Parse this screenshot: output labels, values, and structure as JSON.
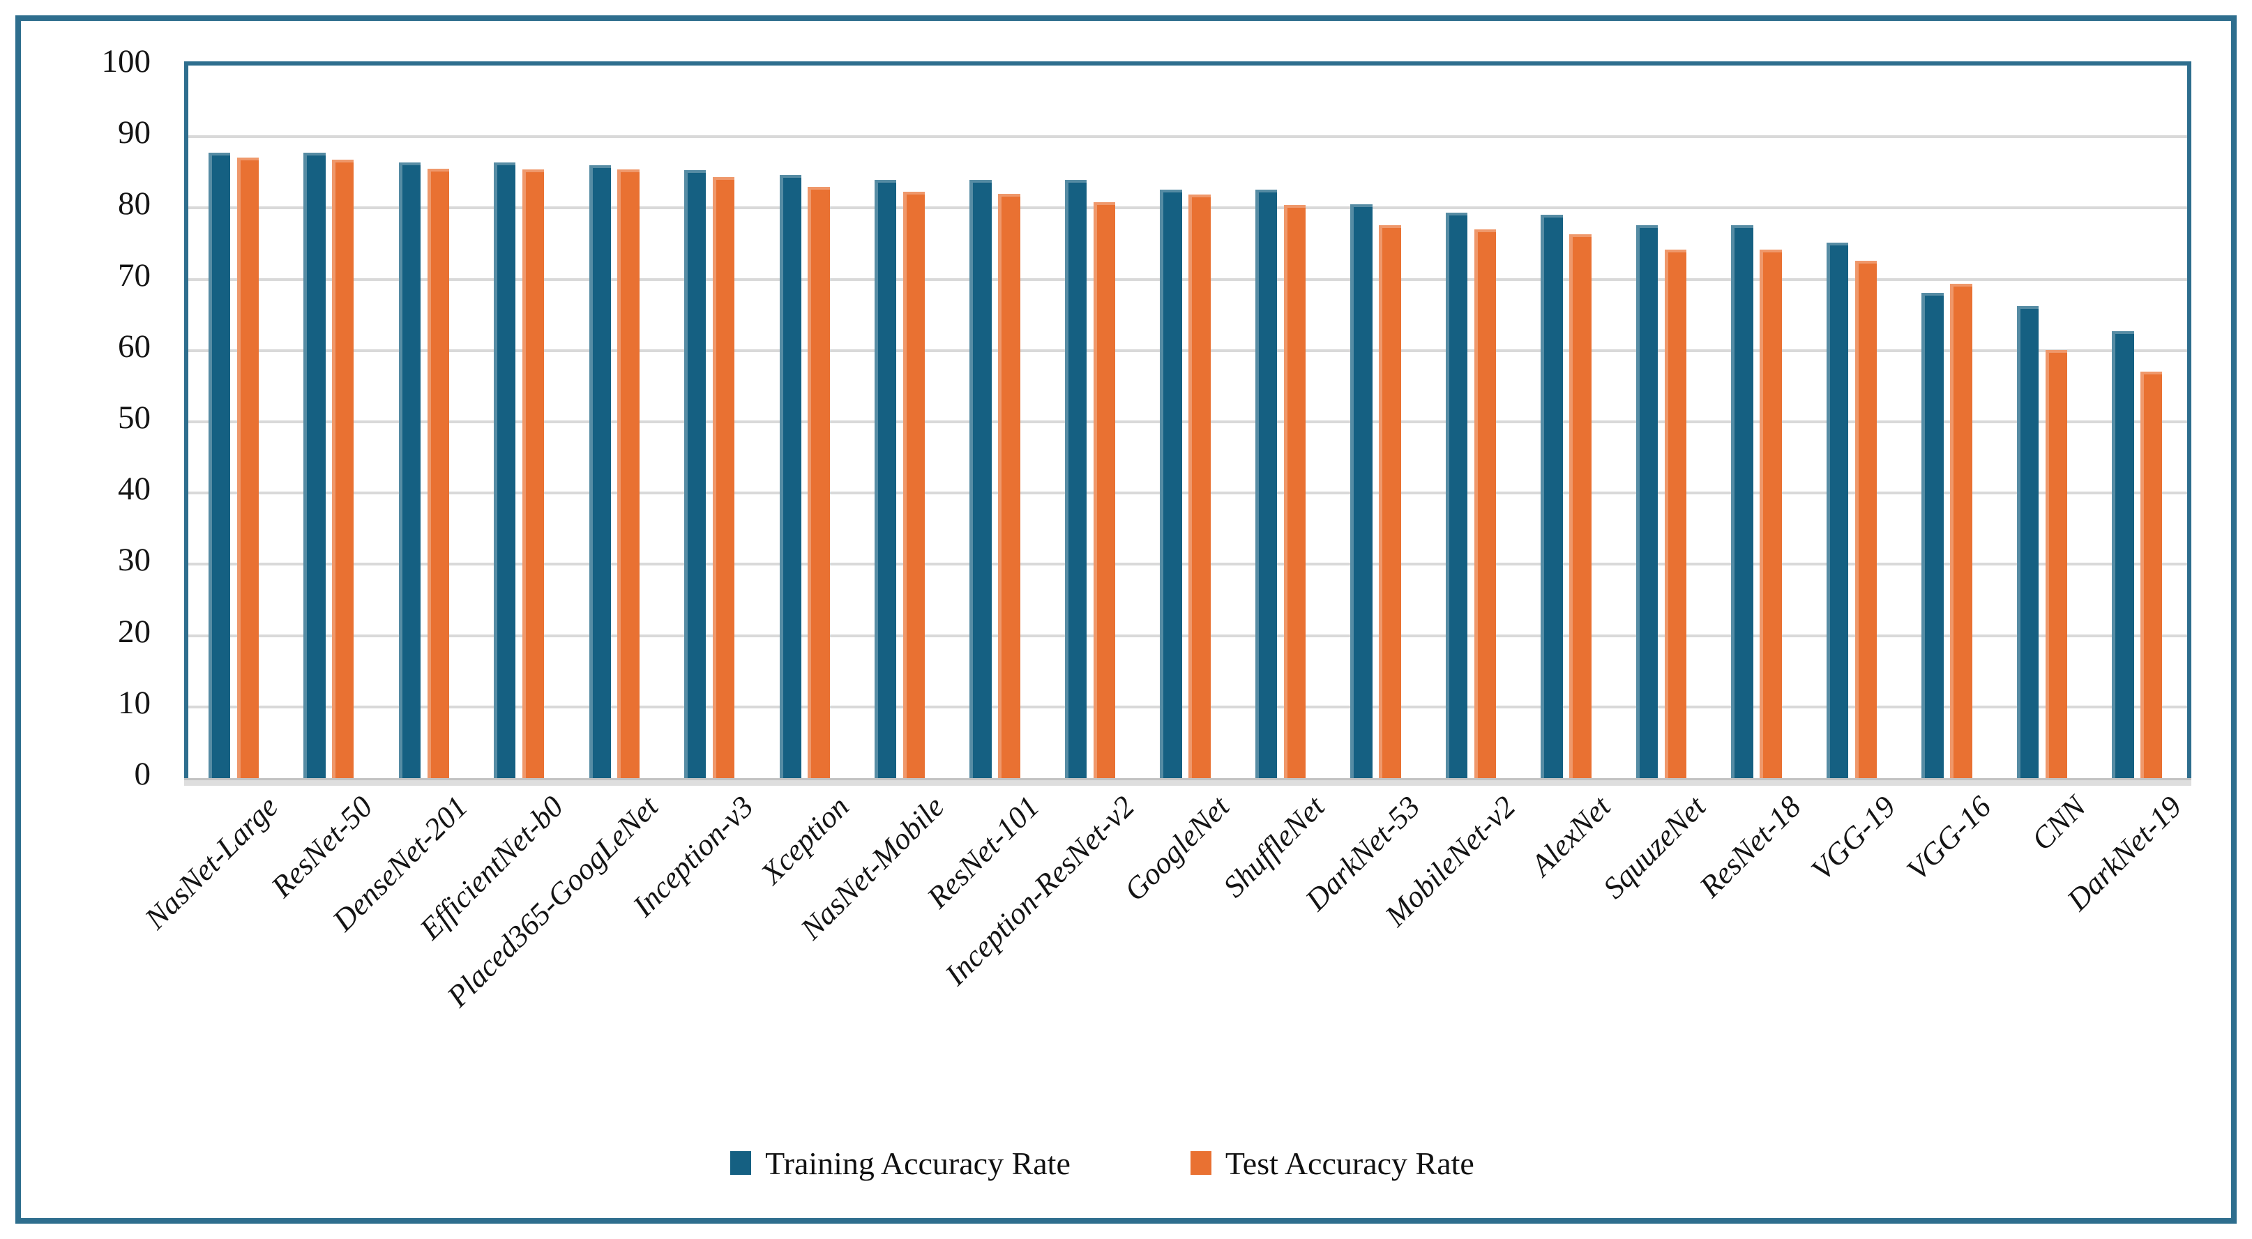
{
  "figure": {
    "border_color": "#2E6E8E",
    "background_color": "#FFFFFF",
    "gridline_color": "#D9D9D9"
  },
  "chart_data": {
    "type": "bar",
    "title": "",
    "xlabel": "",
    "ylabel": "",
    "ylim": [
      0,
      100
    ],
    "ytick_labels": [
      "0",
      "10",
      "20",
      "30",
      "40",
      "50",
      "60",
      "70",
      "80",
      "90",
      "100"
    ],
    "grid": "horizontal",
    "legend_position": "bottom",
    "x_tick_rotation_deg": 45,
    "categories": [
      "NasNet-Large",
      "ResNet-50",
      "DenseNet-201",
      "EfficientNet-b0",
      "Placed365-GoogLeNet",
      "Inception-v3",
      "Xception",
      "NasNet-Mobile",
      "ResNet-101",
      "Inception-ResNet-v2",
      "GoogleNet",
      "ShuffleNet",
      "DarkNet-53",
      "MobileNet-v2",
      "AlexNet",
      "SquuzeNet",
      "ResNet-18",
      "VGG-19",
      "VGG-16",
      "CNN",
      "DarkNet-19"
    ],
    "series": [
      {
        "name": "Training Accuracy Rate",
        "color": "#156082",
        "values": [
          87.8,
          87.8,
          86.4,
          86.4,
          86.0,
          85.3,
          84.6,
          84.0,
          84.0,
          84.0,
          82.6,
          82.6,
          80.5,
          79.4,
          79.1,
          77.6,
          77.6,
          75.1,
          68.1,
          66.2,
          62.7
        ]
      },
      {
        "name": "Test Accuracy Rate",
        "color": "#E97132",
        "values": [
          87.1,
          86.8,
          85.5,
          85.4,
          85.4,
          84.3,
          83.0,
          82.3,
          82.0,
          80.8,
          81.9,
          80.4,
          77.6,
          77.0,
          76.3,
          74.2,
          74.2,
          72.6,
          69.4,
          60.1,
          57.0
        ]
      }
    ]
  },
  "legend": {
    "items": [
      {
        "label": "Training Accuracy Rate",
        "color": "#156082"
      },
      {
        "label": "Test Accuracy Rate",
        "color": "#E97132"
      }
    ]
  }
}
